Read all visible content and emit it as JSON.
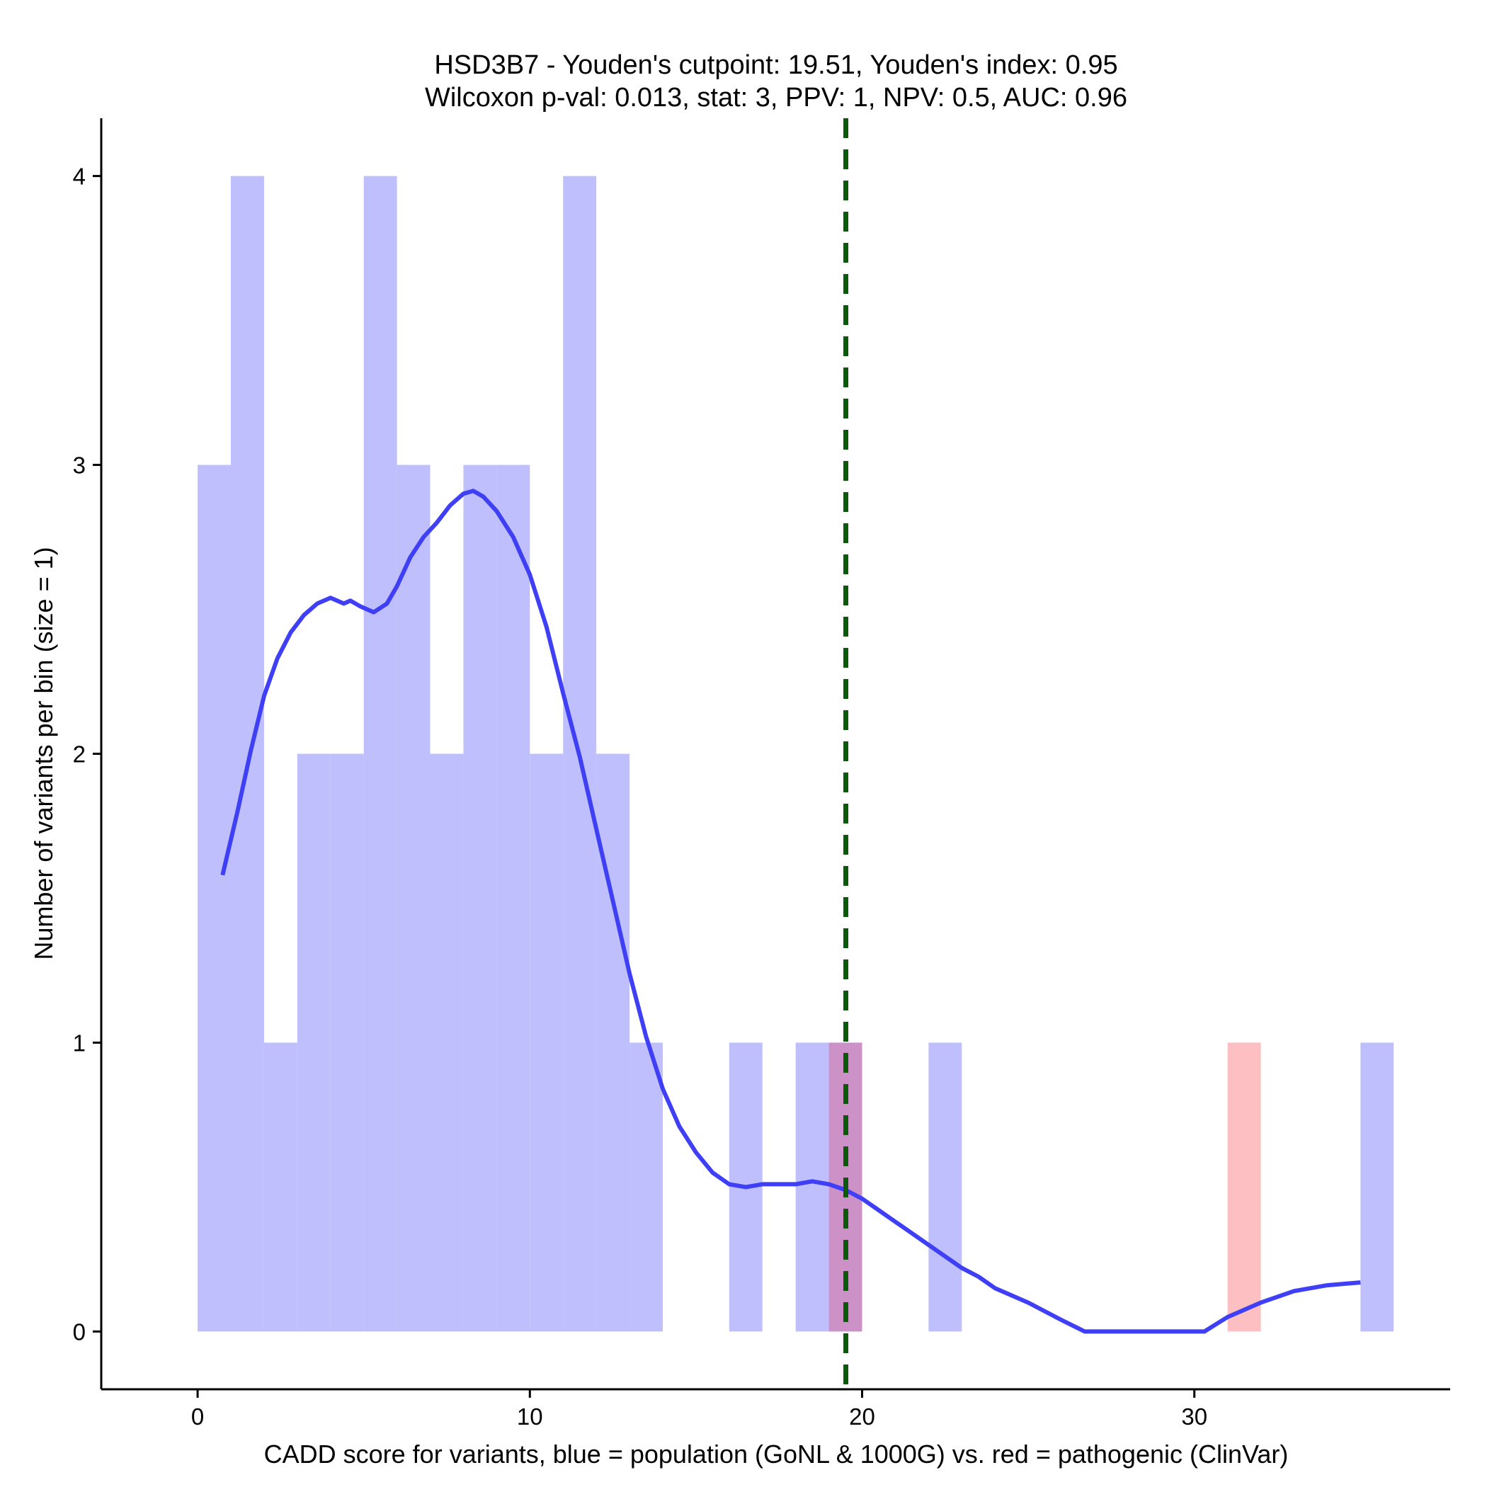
{
  "chart_data": {
    "type": "bar",
    "title_line1": "HSD3B7 - Youden's cutpoint: 19.51, Youden's index: 0.95",
    "title_line2": "Wilcoxon p-val: 0.013, stat: 3, PPV: 1, NPV: 0.5, AUC: 0.96",
    "xlabel": "CADD score for variants, blue = population (GoNL & 1000G) vs. red = pathogenic (ClinVar)",
    "ylabel": "Number of variants per bin (size = 1)",
    "xlim": [
      -2.9,
      37.7
    ],
    "ylim": [
      -0.2,
      4.2
    ],
    "x_ticks": [
      0,
      10,
      20,
      30
    ],
    "y_ticks": [
      0,
      1,
      2,
      3,
      4
    ],
    "bin_width": 1,
    "cutpoint": 19.51,
    "colors": {
      "population": "#bfbffd",
      "pathogenic": "#fdbfc2",
      "overlap": "#cc92c7",
      "density": "#3f3ff5",
      "cutpoint": "#0a5a0a",
      "axis": "#000000"
    },
    "series": [
      {
        "name": "population (GoNL & 1000G)",
        "bins": [
          {
            "start": 0,
            "count": 3
          },
          {
            "start": 1,
            "count": 4
          },
          {
            "start": 2,
            "count": 1
          },
          {
            "start": 3,
            "count": 2
          },
          {
            "start": 4,
            "count": 2
          },
          {
            "start": 5,
            "count": 4
          },
          {
            "start": 6,
            "count": 3
          },
          {
            "start": 7,
            "count": 2
          },
          {
            "start": 8,
            "count": 3
          },
          {
            "start": 9,
            "count": 3
          },
          {
            "start": 10,
            "count": 2
          },
          {
            "start": 11,
            "count": 4
          },
          {
            "start": 12,
            "count": 2
          },
          {
            "start": 13,
            "count": 1
          },
          {
            "start": 16,
            "count": 1
          },
          {
            "start": 18,
            "count": 1
          },
          {
            "start": 19,
            "count": 1
          },
          {
            "start": 22,
            "count": 1
          },
          {
            "start": 35,
            "count": 1
          }
        ]
      },
      {
        "name": "pathogenic (ClinVar)",
        "bins": [
          {
            "start": 19,
            "count": 1
          },
          {
            "start": 31,
            "count": 1
          }
        ]
      }
    ],
    "density": {
      "x": [
        0.75,
        1.2,
        1.6,
        2.0,
        2.4,
        2.8,
        3.2,
        3.6,
        4.0,
        4.4,
        4.6,
        4.9,
        5.3,
        5.7,
        6.0,
        6.4,
        6.8,
        7.2,
        7.6,
        8.0,
        8.3,
        8.6,
        9.0,
        9.5,
        10.0,
        10.5,
        11.0,
        11.5,
        12.0,
        12.5,
        13.0,
        13.5,
        14.0,
        14.5,
        15.0,
        15.5,
        16.0,
        16.5,
        17.0,
        17.5,
        18.0,
        18.5,
        19.0,
        19.5,
        20.0,
        20.5,
        21.0,
        21.5,
        22.0,
        22.5,
        23.0,
        23.5,
        24.0,
        25.0,
        26.0,
        26.7,
        28.0,
        29.0,
        30.3,
        31.0,
        32.0,
        33.0,
        34.0,
        35.0
      ],
      "y": [
        1.58,
        1.8,
        2.01,
        2.2,
        2.33,
        2.42,
        2.48,
        2.52,
        2.54,
        2.52,
        2.53,
        2.51,
        2.49,
        2.52,
        2.58,
        2.68,
        2.75,
        2.8,
        2.86,
        2.9,
        2.91,
        2.89,
        2.84,
        2.75,
        2.62,
        2.44,
        2.21,
        1.99,
        1.74,
        1.49,
        1.24,
        1.02,
        0.84,
        0.71,
        0.62,
        0.55,
        0.51,
        0.5,
        0.51,
        0.51,
        0.51,
        0.52,
        0.51,
        0.49,
        0.46,
        0.42,
        0.38,
        0.34,
        0.3,
        0.26,
        0.22,
        0.19,
        0.15,
        0.1,
        0.04,
        0.0,
        0.0,
        0.0,
        0.0,
        0.05,
        0.1,
        0.14,
        0.16,
        0.17
      ]
    }
  }
}
